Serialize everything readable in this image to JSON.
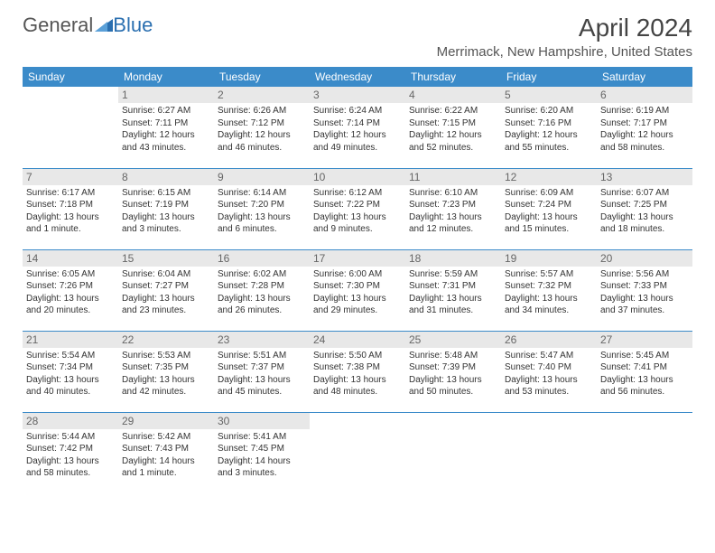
{
  "logo": {
    "text1": "General",
    "text2": "Blue"
  },
  "title": "April 2024",
  "subtitle": "Merrimack, New Hampshire, United States",
  "colors": {
    "header_bg": "#3b8bc9",
    "logo_accent": "#2a6fb0",
    "daynum_bg": "#e8e8e8",
    "border": "#3b8bc9"
  },
  "daysOfWeek": [
    "Sunday",
    "Monday",
    "Tuesday",
    "Wednesday",
    "Thursday",
    "Friday",
    "Saturday"
  ],
  "weeks": [
    [
      null,
      {
        "d": "1",
        "sr": "6:27 AM",
        "ss": "7:11 PM",
        "dl": "12 hours and 43 minutes."
      },
      {
        "d": "2",
        "sr": "6:26 AM",
        "ss": "7:12 PM",
        "dl": "12 hours and 46 minutes."
      },
      {
        "d": "3",
        "sr": "6:24 AM",
        "ss": "7:14 PM",
        "dl": "12 hours and 49 minutes."
      },
      {
        "d": "4",
        "sr": "6:22 AM",
        "ss": "7:15 PM",
        "dl": "12 hours and 52 minutes."
      },
      {
        "d": "5",
        "sr": "6:20 AM",
        "ss": "7:16 PM",
        "dl": "12 hours and 55 minutes."
      },
      {
        "d": "6",
        "sr": "6:19 AM",
        "ss": "7:17 PM",
        "dl": "12 hours and 58 minutes."
      }
    ],
    [
      {
        "d": "7",
        "sr": "6:17 AM",
        "ss": "7:18 PM",
        "dl": "13 hours and 1 minute."
      },
      {
        "d": "8",
        "sr": "6:15 AM",
        "ss": "7:19 PM",
        "dl": "13 hours and 3 minutes."
      },
      {
        "d": "9",
        "sr": "6:14 AM",
        "ss": "7:20 PM",
        "dl": "13 hours and 6 minutes."
      },
      {
        "d": "10",
        "sr": "6:12 AM",
        "ss": "7:22 PM",
        "dl": "13 hours and 9 minutes."
      },
      {
        "d": "11",
        "sr": "6:10 AM",
        "ss": "7:23 PM",
        "dl": "13 hours and 12 minutes."
      },
      {
        "d": "12",
        "sr": "6:09 AM",
        "ss": "7:24 PM",
        "dl": "13 hours and 15 minutes."
      },
      {
        "d": "13",
        "sr": "6:07 AM",
        "ss": "7:25 PM",
        "dl": "13 hours and 18 minutes."
      }
    ],
    [
      {
        "d": "14",
        "sr": "6:05 AM",
        "ss": "7:26 PM",
        "dl": "13 hours and 20 minutes."
      },
      {
        "d": "15",
        "sr": "6:04 AM",
        "ss": "7:27 PM",
        "dl": "13 hours and 23 minutes."
      },
      {
        "d": "16",
        "sr": "6:02 AM",
        "ss": "7:28 PM",
        "dl": "13 hours and 26 minutes."
      },
      {
        "d": "17",
        "sr": "6:00 AM",
        "ss": "7:30 PM",
        "dl": "13 hours and 29 minutes."
      },
      {
        "d": "18",
        "sr": "5:59 AM",
        "ss": "7:31 PM",
        "dl": "13 hours and 31 minutes."
      },
      {
        "d": "19",
        "sr": "5:57 AM",
        "ss": "7:32 PM",
        "dl": "13 hours and 34 minutes."
      },
      {
        "d": "20",
        "sr": "5:56 AM",
        "ss": "7:33 PM",
        "dl": "13 hours and 37 minutes."
      }
    ],
    [
      {
        "d": "21",
        "sr": "5:54 AM",
        "ss": "7:34 PM",
        "dl": "13 hours and 40 minutes."
      },
      {
        "d": "22",
        "sr": "5:53 AM",
        "ss": "7:35 PM",
        "dl": "13 hours and 42 minutes."
      },
      {
        "d": "23",
        "sr": "5:51 AM",
        "ss": "7:37 PM",
        "dl": "13 hours and 45 minutes."
      },
      {
        "d": "24",
        "sr": "5:50 AM",
        "ss": "7:38 PM",
        "dl": "13 hours and 48 minutes."
      },
      {
        "d": "25",
        "sr": "5:48 AM",
        "ss": "7:39 PM",
        "dl": "13 hours and 50 minutes."
      },
      {
        "d": "26",
        "sr": "5:47 AM",
        "ss": "7:40 PM",
        "dl": "13 hours and 53 minutes."
      },
      {
        "d": "27",
        "sr": "5:45 AM",
        "ss": "7:41 PM",
        "dl": "13 hours and 56 minutes."
      }
    ],
    [
      {
        "d": "28",
        "sr": "5:44 AM",
        "ss": "7:42 PM",
        "dl": "13 hours and 58 minutes."
      },
      {
        "d": "29",
        "sr": "5:42 AM",
        "ss": "7:43 PM",
        "dl": "14 hours and 1 minute."
      },
      {
        "d": "30",
        "sr": "5:41 AM",
        "ss": "7:45 PM",
        "dl": "14 hours and 3 minutes."
      },
      null,
      null,
      null,
      null
    ]
  ],
  "labels": {
    "sunrise": "Sunrise: ",
    "sunset": "Sunset: ",
    "daylight": "Daylight: "
  }
}
